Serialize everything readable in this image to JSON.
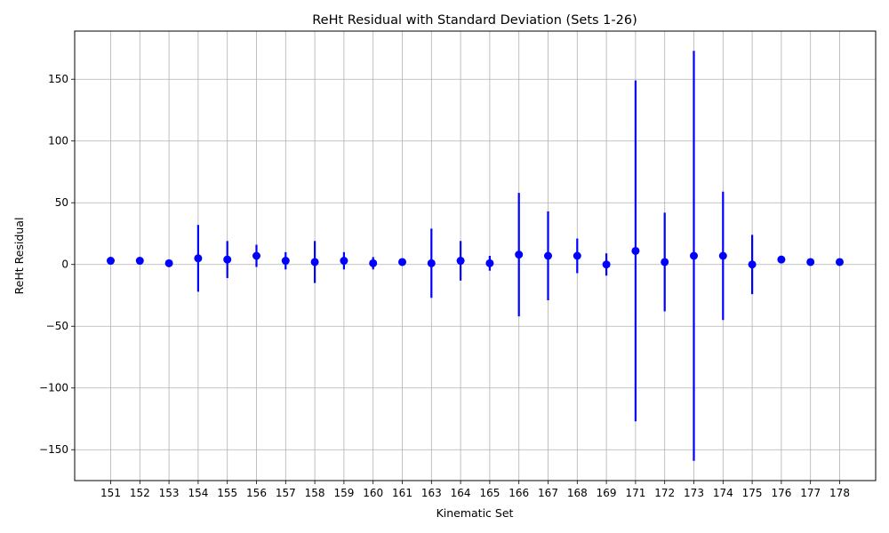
{
  "chart_data": {
    "type": "scatter",
    "title": "ReHt Residual with Standard Deviation (Sets 1-26)",
    "xlabel": "Kinematic Set",
    "ylabel": "ReHt Residual",
    "ylim": [
      -175,
      189
    ],
    "yticks": [
      -150,
      -100,
      -50,
      0,
      50,
      100,
      150
    ],
    "ytick_labels": [
      "−150",
      "−100",
      "−50",
      "0",
      "50",
      "100",
      "150"
    ],
    "grid": true,
    "marker_color": "#0000ff",
    "categories": [
      "151",
      "152",
      "153",
      "154",
      "155",
      "156",
      "157",
      "158",
      "159",
      "160",
      "161",
      "163",
      "164",
      "165",
      "166",
      "167",
      "168",
      "169",
      "171",
      "172",
      "173",
      "174",
      "175",
      "176",
      "177",
      "178"
    ],
    "values": [
      3,
      3,
      1,
      5,
      4,
      7,
      3,
      2,
      3,
      1,
      2,
      1,
      3,
      1,
      8,
      7,
      7,
      0,
      11,
      2,
      7,
      7,
      0,
      4,
      2,
      2
    ],
    "std": [
      0,
      0,
      0,
      27,
      15,
      9,
      7,
      17,
      7,
      5,
      0,
      28,
      16,
      6,
      50,
      36,
      14,
      9,
      138,
      40,
      166,
      52,
      24,
      0,
      0,
      0
    ]
  }
}
